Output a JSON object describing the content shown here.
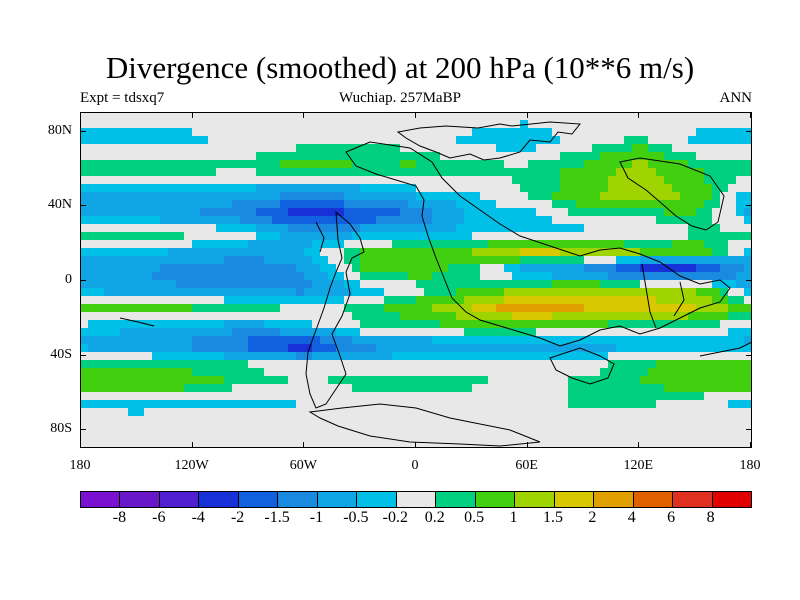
{
  "chart_data": {
    "type": "heatmap",
    "title": "Divergence (smoothed) at 200 hPa (10**6 m/s)",
    "subtitle_left": "Expt = tdsxq7",
    "subtitle_center": "Wuchiap. 257MaBP",
    "subtitle_right": "ANN",
    "x_tick_labels": [
      "180",
      "120W",
      "60W",
      "0",
      "60E",
      "120E",
      "180"
    ],
    "y_tick_labels": [
      "80N",
      "40N",
      "0",
      "40S",
      "80S"
    ],
    "x_range_deg": [
      -180,
      180
    ],
    "y_range_deg": [
      -90,
      90
    ],
    "contour_levels": [
      "-8",
      "-6",
      "-4",
      "-2",
      "-1.5",
      "-1",
      "-0.5",
      "-0.2",
      "0.2",
      "0.5",
      "1",
      "1.5",
      "2",
      "4",
      "6",
      "8"
    ],
    "colors": [
      "#7a10d0",
      "#6818c8",
      "#5020d0",
      "#1830d8",
      "#1060e0",
      "#1a8ae0",
      "#10a6e6",
      "#00c0e8",
      "#e8e8e8",
      "#00d080",
      "#40d010",
      "#a0d400",
      "#d8c800",
      "#e0a000",
      "#e06000",
      "#e03020",
      "#e00000"
    ],
    "field": {
      "lon_deg": [
        -180,
        -150,
        -120,
        -90,
        -60,
        -30,
        0,
        30,
        60,
        90,
        120,
        150,
        180
      ],
      "lat_deg": [
        90,
        75,
        60,
        45,
        35,
        25,
        15,
        5,
        -5,
        -15,
        -25,
        -35,
        -45,
        -55,
        -65,
        -75,
        -90
      ],
      "values": [
        [
          0,
          0,
          0,
          0,
          0,
          0,
          0,
          0,
          0,
          0,
          0,
          0,
          0
        ],
        [
          -0.3,
          -0.4,
          -0.3,
          0,
          0,
          0.2,
          0,
          -0.3,
          -0.5,
          0,
          0.3,
          -0.3,
          -0.3
        ],
        [
          0.4,
          0.6,
          0.4,
          0.3,
          0.8,
          0.5,
          0.6,
          0.3,
          0.3,
          0.6,
          1.2,
          0.5,
          0.4
        ],
        [
          -0.5,
          -0.7,
          -0.6,
          -0.8,
          -1.2,
          -0.9,
          -0.5,
          -0.3,
          0.2,
          0.8,
          1.5,
          0.8,
          -0.5
        ],
        [
          -0.6,
          -0.8,
          -1.0,
          -1.5,
          -2.5,
          -2.0,
          -1.5,
          -0.3,
          -0.4,
          0.3,
          0.3,
          0.5,
          -0.6
        ],
        [
          0.4,
          0.5,
          0.3,
          0,
          -0.8,
          -0.6,
          -0.5,
          -0.4,
          -0.5,
          -0.4,
          -0.3,
          0.2,
          0.4
        ],
        [
          -0.3,
          -0.4,
          -0.6,
          -0.9,
          -0.5,
          0.5,
          0.9,
          1.0,
          1.6,
          1.4,
          1.0,
          0.8,
          -0.3
        ],
        [
          -0.8,
          -1.0,
          -1.2,
          -1.4,
          -1.0,
          0.5,
          0.8,
          0.2,
          -1.0,
          -1.4,
          -2.5,
          -2.5,
          -0.8
        ],
        [
          -0.6,
          -0.8,
          -1.0,
          -1.1,
          -1.2,
          -0.5,
          0,
          0.5,
          1.0,
          1.4,
          1.3,
          1.0,
          -0.6
        ],
        [
          0.5,
          0.6,
          0.5,
          0.4,
          0,
          0.3,
          0.8,
          1.5,
          2.5,
          2.0,
          1.8,
          1.5,
          0.5
        ],
        [
          -0.3,
          -0.4,
          -0.5,
          -0.8,
          -0.3,
          0.2,
          0.3,
          0.6,
          0.6,
          0.3,
          0.2,
          0.3,
          -0.3
        ],
        [
          -0.6,
          -0.9,
          -1.2,
          -1.8,
          -2.5,
          -1.2,
          -1.0,
          -0.6,
          -0.6,
          -0.8,
          -0.5,
          -0.7,
          -0.6
        ],
        [
          0.5,
          0.4,
          0.3,
          0.2,
          0,
          -0.2,
          0,
          0,
          0,
          0,
          0.4,
          0.8,
          0.5
        ],
        [
          0.9,
          1.0,
          0.8,
          0.3,
          0.2,
          0.3,
          0.4,
          0.3,
          0,
          0.3,
          0.5,
          0.8,
          0.9
        ],
        [
          -0.4,
          -0.5,
          -0.3,
          -0.4,
          -0.2,
          0,
          0,
          0,
          0,
          0.3,
          0.3,
          0,
          -0.4
        ],
        [
          0.2,
          0,
          0,
          0,
          0,
          0,
          0,
          0,
          0,
          0,
          0,
          0,
          0.2
        ],
        [
          0,
          0,
          0,
          0,
          0,
          0,
          0,
          0,
          0,
          0,
          0,
          0,
          0
        ]
      ]
    }
  }
}
